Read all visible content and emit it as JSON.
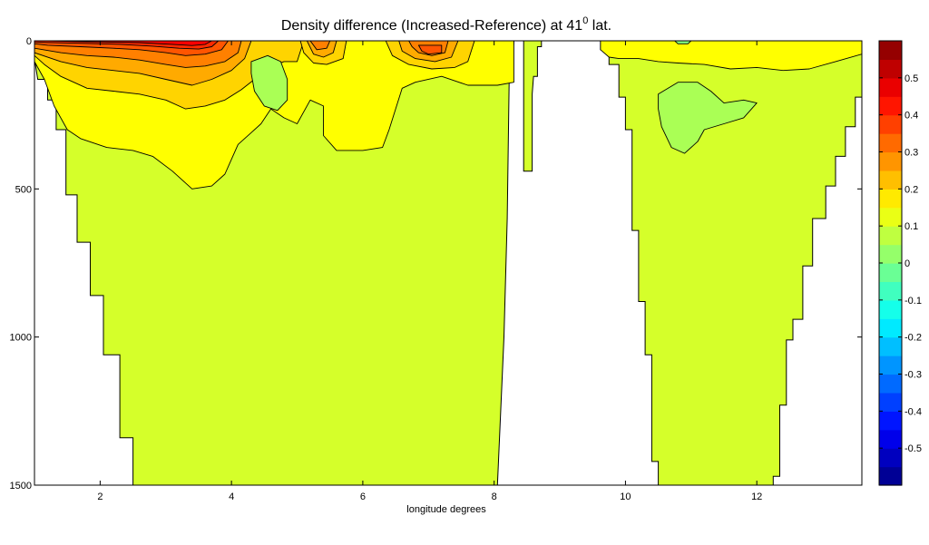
{
  "chart_data": {
    "type": "contour",
    "title": "Density difference (Increased-Reference) at 41",
    "title_superscript": "0",
    "title_suffix": " lat.",
    "xlabel": "longitude degrees",
    "ylabel": "",
    "xlim": [
      1,
      13.6
    ],
    "ylim": [
      1500,
      0
    ],
    "y_reversed": true,
    "x_ticks": [
      2,
      4,
      6,
      8,
      10,
      12
    ],
    "y_ticks": [
      0,
      500,
      1000,
      1500
    ],
    "grid": false,
    "colorbar": {
      "position": "right",
      "range": [
        -0.6,
        0.6
      ],
      "step": 0.05,
      "ticks": [
        "0.5",
        "0.4",
        "0.3",
        "0.2",
        "0.1",
        "0",
        "-0.1",
        "-0.2",
        "-0.3",
        "-0.4",
        "-0.5"
      ],
      "tick_values": [
        0.5,
        0.4,
        0.3,
        0.2,
        0.1,
        0,
        -0.1,
        -0.2,
        -0.3,
        -0.4,
        -0.5
      ],
      "colormap": "jet"
    },
    "background_value": 0.1,
    "basin_segments": [
      {
        "outline": [
          [
            1.0,
            0
          ],
          [
            8.3,
            0
          ],
          [
            8.28,
            70
          ],
          [
            8.23,
            120
          ],
          [
            8.2,
            600
          ],
          [
            8.15,
            1000
          ],
          [
            8.05,
            1500
          ],
          [
            2.5,
            1500
          ],
          [
            2.5,
            1340
          ],
          [
            2.3,
            1340
          ],
          [
            2.3,
            1060
          ],
          [
            2.05,
            1060
          ],
          [
            2.05,
            860
          ],
          [
            1.85,
            860
          ],
          [
            1.85,
            680
          ],
          [
            1.65,
            680
          ],
          [
            1.65,
            520
          ],
          [
            1.48,
            520
          ],
          [
            1.48,
            300
          ],
          [
            1.33,
            300
          ],
          [
            1.33,
            200
          ],
          [
            1.2,
            200
          ],
          [
            1.2,
            130
          ],
          [
            1.05,
            130
          ],
          [
            1.0,
            60
          ]
        ]
      },
      {
        "outline": [
          [
            8.45,
            0
          ],
          [
            8.72,
            0
          ],
          [
            8.72,
            20
          ],
          [
            8.66,
            20
          ],
          [
            8.66,
            120
          ],
          [
            8.6,
            120
          ],
          [
            8.58,
            180
          ],
          [
            8.58,
            440
          ],
          [
            8.45,
            440
          ]
        ]
      },
      {
        "outline": [
          [
            9.62,
            0
          ],
          [
            13.6,
            0
          ],
          [
            13.6,
            190
          ],
          [
            13.5,
            190
          ],
          [
            13.5,
            290
          ],
          [
            13.35,
            290
          ],
          [
            13.35,
            390
          ],
          [
            13.2,
            390
          ],
          [
            13.2,
            490
          ],
          [
            13.05,
            490
          ],
          [
            13.05,
            600
          ],
          [
            12.85,
            600
          ],
          [
            12.85,
            760
          ],
          [
            12.7,
            760
          ],
          [
            12.7,
            940
          ],
          [
            12.55,
            940
          ],
          [
            12.55,
            1010
          ],
          [
            12.45,
            1010
          ],
          [
            12.45,
            1230
          ],
          [
            12.35,
            1230
          ],
          [
            12.35,
            1470
          ],
          [
            12.25,
            1470
          ],
          [
            12.25,
            1500
          ],
          [
            10.5,
            1500
          ],
          [
            10.5,
            1420
          ],
          [
            10.4,
            1420
          ],
          [
            10.4,
            1060
          ],
          [
            10.3,
            1060
          ],
          [
            10.3,
            880
          ],
          [
            10.2,
            880
          ],
          [
            10.2,
            640
          ],
          [
            10.1,
            640
          ],
          [
            10.1,
            300
          ],
          [
            10.0,
            300
          ],
          [
            10.0,
            190
          ],
          [
            9.9,
            190
          ],
          [
            9.9,
            80
          ],
          [
            9.75,
            80
          ],
          [
            9.75,
            30
          ],
          [
            9.62,
            30
          ]
        ]
      }
    ],
    "contour_regions": [
      {
        "value": 0.15,
        "polygon": [
          [
            1.0,
            0
          ],
          [
            8.3,
            0
          ],
          [
            8.3,
            140
          ],
          [
            8.05,
            150
          ],
          [
            7.6,
            150
          ],
          [
            7.2,
            120
          ],
          [
            6.8,
            140
          ],
          [
            6.6,
            160
          ],
          [
            6.5,
            230
          ],
          [
            6.4,
            300
          ],
          [
            6.3,
            360
          ],
          [
            6.0,
            370
          ],
          [
            5.6,
            370
          ],
          [
            5.4,
            320
          ],
          [
            5.4,
            220
          ],
          [
            5.2,
            200
          ],
          [
            5.0,
            280
          ],
          [
            4.8,
            260
          ],
          [
            4.6,
            230
          ],
          [
            4.45,
            280
          ],
          [
            4.3,
            310
          ],
          [
            4.1,
            350
          ],
          [
            3.9,
            450
          ],
          [
            3.7,
            490
          ],
          [
            3.4,
            500
          ],
          [
            3.1,
            440
          ],
          [
            2.8,
            390
          ],
          [
            2.5,
            370
          ],
          [
            2.1,
            360
          ],
          [
            1.7,
            330
          ],
          [
            1.5,
            300
          ],
          [
            1.3,
            220
          ],
          [
            1.15,
            130
          ],
          [
            1.0,
            70
          ]
        ]
      },
      {
        "value": 0.15,
        "polygon": [
          [
            9.62,
            0
          ],
          [
            13.6,
            0
          ],
          [
            13.6,
            45
          ],
          [
            13.2,
            70
          ],
          [
            12.8,
            95
          ],
          [
            12.4,
            100
          ],
          [
            12.0,
            90
          ],
          [
            11.6,
            95
          ],
          [
            11.2,
            80
          ],
          [
            10.8,
            75
          ],
          [
            10.5,
            70
          ],
          [
            10.2,
            60
          ],
          [
            9.9,
            60
          ],
          [
            9.75,
            55
          ],
          [
            9.62,
            30
          ]
        ]
      },
      {
        "value": 0.2,
        "polygon": [
          [
            1.0,
            0
          ],
          [
            5.1,
            0
          ],
          [
            5.0,
            70
          ],
          [
            4.8,
            70
          ],
          [
            4.55,
            90
          ],
          [
            4.35,
            130
          ],
          [
            4.15,
            165
          ],
          [
            3.9,
            200
          ],
          [
            3.6,
            220
          ],
          [
            3.3,
            230
          ],
          [
            3.0,
            200
          ],
          [
            2.6,
            180
          ],
          [
            2.2,
            170
          ],
          [
            1.8,
            160
          ],
          [
            1.4,
            120
          ],
          [
            1.15,
            80
          ],
          [
            1.0,
            50
          ]
        ]
      },
      {
        "value": 0.2,
        "polygon": [
          [
            5.05,
            0
          ],
          [
            5.75,
            0
          ],
          [
            5.7,
            60
          ],
          [
            5.45,
            80
          ],
          [
            5.25,
            75
          ],
          [
            5.1,
            40
          ]
        ]
      },
      {
        "value": 0.2,
        "polygon": [
          [
            6.35,
            0
          ],
          [
            7.7,
            0
          ],
          [
            7.6,
            70
          ],
          [
            7.4,
            90
          ],
          [
            7.05,
            95
          ],
          [
            6.7,
            80
          ],
          [
            6.45,
            50
          ]
        ]
      },
      {
        "value": 0.25,
        "polygon": [
          [
            1.0,
            0
          ],
          [
            4.3,
            0
          ],
          [
            4.2,
            60
          ],
          [
            4.0,
            100
          ],
          [
            3.7,
            130
          ],
          [
            3.4,
            150
          ],
          [
            3.0,
            130
          ],
          [
            2.6,
            110
          ],
          [
            2.2,
            100
          ],
          [
            1.8,
            90
          ],
          [
            1.4,
            70
          ],
          [
            1.0,
            40
          ]
        ]
      },
      {
        "value": 0.25,
        "polygon": [
          [
            5.15,
            0
          ],
          [
            5.6,
            0
          ],
          [
            5.55,
            40
          ],
          [
            5.4,
            55
          ],
          [
            5.25,
            45
          ]
        ]
      },
      {
        "value": 0.25,
        "polygon": [
          [
            6.55,
            0
          ],
          [
            7.45,
            0
          ],
          [
            7.35,
            55
          ],
          [
            7.1,
            70
          ],
          [
            6.8,
            60
          ],
          [
            6.6,
            35
          ]
        ]
      },
      {
        "value": 0.3,
        "polygon": [
          [
            1.0,
            0
          ],
          [
            4.15,
            0
          ],
          [
            4.1,
            40
          ],
          [
            3.9,
            70
          ],
          [
            3.6,
            85
          ],
          [
            3.3,
            90
          ],
          [
            3.0,
            80
          ],
          [
            2.6,
            65
          ],
          [
            2.2,
            55
          ],
          [
            1.8,
            50
          ],
          [
            1.4,
            40
          ],
          [
            1.0,
            25
          ]
        ]
      },
      {
        "value": 0.3,
        "polygon": [
          [
            5.2,
            0
          ],
          [
            5.5,
            0
          ],
          [
            5.45,
            25
          ],
          [
            5.3,
            30
          ]
        ]
      },
      {
        "value": 0.3,
        "polygon": [
          [
            6.7,
            0
          ],
          [
            7.3,
            0
          ],
          [
            7.25,
            40
          ],
          [
            7.05,
            50
          ],
          [
            6.85,
            40
          ],
          [
            6.75,
            20
          ]
        ]
      },
      {
        "value": 0.35,
        "polygon": [
          [
            1.0,
            0
          ],
          [
            3.95,
            0
          ],
          [
            3.85,
            30
          ],
          [
            3.6,
            45
          ],
          [
            3.3,
            50
          ],
          [
            3.0,
            40
          ],
          [
            2.6,
            30
          ],
          [
            2.2,
            25
          ],
          [
            1.7,
            20
          ],
          [
            1.2,
            15
          ],
          [
            1.0,
            10
          ]
        ]
      },
      {
        "value": 0.35,
        "polygon": [
          [
            6.85,
            15
          ],
          [
            7.2,
            15
          ],
          [
            7.2,
            40
          ],
          [
            7.0,
            45
          ],
          [
            6.9,
            35
          ]
        ]
      },
      {
        "value": 0.4,
        "polygon": [
          [
            1.0,
            0
          ],
          [
            3.8,
            0
          ],
          [
            3.7,
            20
          ],
          [
            3.5,
            28
          ],
          [
            3.2,
            25
          ],
          [
            2.8,
            18
          ],
          [
            2.3,
            12
          ],
          [
            1.6,
            8
          ],
          [
            1.0,
            5
          ]
        ]
      },
      {
        "value": 0.45,
        "polygon": [
          [
            1.2,
            0
          ],
          [
            3.7,
            0
          ],
          [
            3.6,
            12
          ],
          [
            3.4,
            16
          ],
          [
            3.1,
            12
          ],
          [
            2.6,
            6
          ],
          [
            1.8,
            3
          ]
        ]
      },
      {
        "value": 0.05,
        "polygon": [
          [
            4.3,
            70
          ],
          [
            4.55,
            50
          ],
          [
            4.75,
            70
          ],
          [
            4.85,
            130
          ],
          [
            4.85,
            200
          ],
          [
            4.7,
            235
          ],
          [
            4.5,
            220
          ],
          [
            4.35,
            170
          ],
          [
            4.3,
            110
          ]
        ]
      },
      {
        "value": 0.05,
        "polygon": [
          [
            10.5,
            180
          ],
          [
            10.8,
            140
          ],
          [
            11.1,
            140
          ],
          [
            11.3,
            170
          ],
          [
            11.5,
            210
          ],
          [
            11.8,
            200
          ],
          [
            12.0,
            210
          ],
          [
            11.8,
            260
          ],
          [
            11.5,
            280
          ],
          [
            11.2,
            300
          ],
          [
            11.1,
            340
          ],
          [
            10.9,
            380
          ],
          [
            10.7,
            360
          ],
          [
            10.55,
            290
          ],
          [
            10.5,
            230
          ]
        ]
      },
      {
        "value": 0.0,
        "polygon": [
          [
            10.75,
            0
          ],
          [
            11.0,
            0
          ],
          [
            10.95,
            10
          ],
          [
            10.8,
            10
          ]
        ]
      }
    ]
  }
}
